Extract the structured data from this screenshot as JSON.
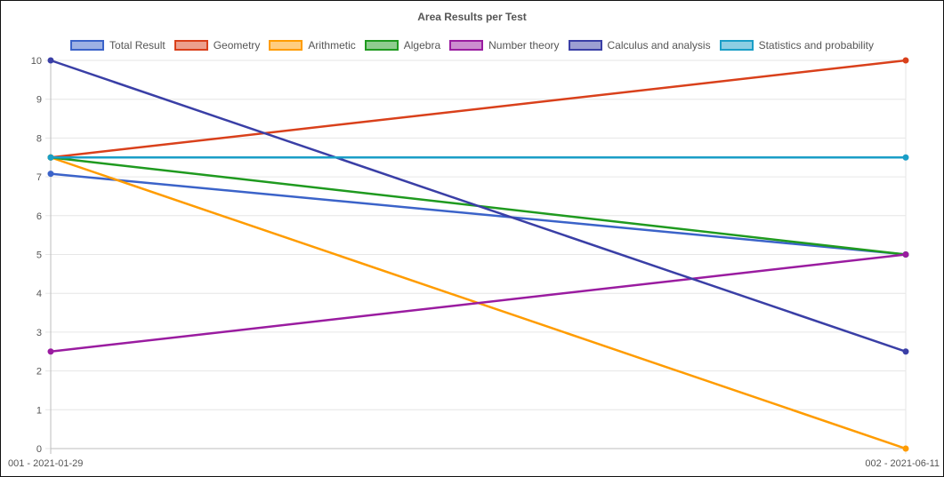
{
  "chart_data": {
    "type": "line",
    "title": "Area Results per Test",
    "categories": [
      "001 - 2021-01-29",
      "002 - 2021-06-11"
    ],
    "ylim": [
      0,
      10
    ],
    "yticks": [
      0,
      1,
      2,
      3,
      4,
      5,
      6,
      7,
      8,
      9,
      10
    ],
    "grid": true,
    "legend_position": "top",
    "series": [
      {
        "name": "Total Result",
        "color": "#3b63c9",
        "values": [
          7.08,
          5
        ]
      },
      {
        "name": "Geometry",
        "color": "#d9401b",
        "values": [
          7.5,
          10
        ]
      },
      {
        "name": "Arithmetic",
        "color": "#ff9c00",
        "values": [
          7.5,
          0
        ]
      },
      {
        "name": "Algebra",
        "color": "#1f9a1f",
        "values": [
          7.5,
          5
        ]
      },
      {
        "name": "Number theory",
        "color": "#9a1ca0",
        "values": [
          2.5,
          5
        ]
      },
      {
        "name": "Calculus and analysis",
        "color": "#3a3fa6",
        "values": [
          10,
          2.5
        ]
      },
      {
        "name": "Statistics and probability",
        "color": "#1a9ec7",
        "values": [
          7.5,
          7.5
        ]
      }
    ]
  }
}
